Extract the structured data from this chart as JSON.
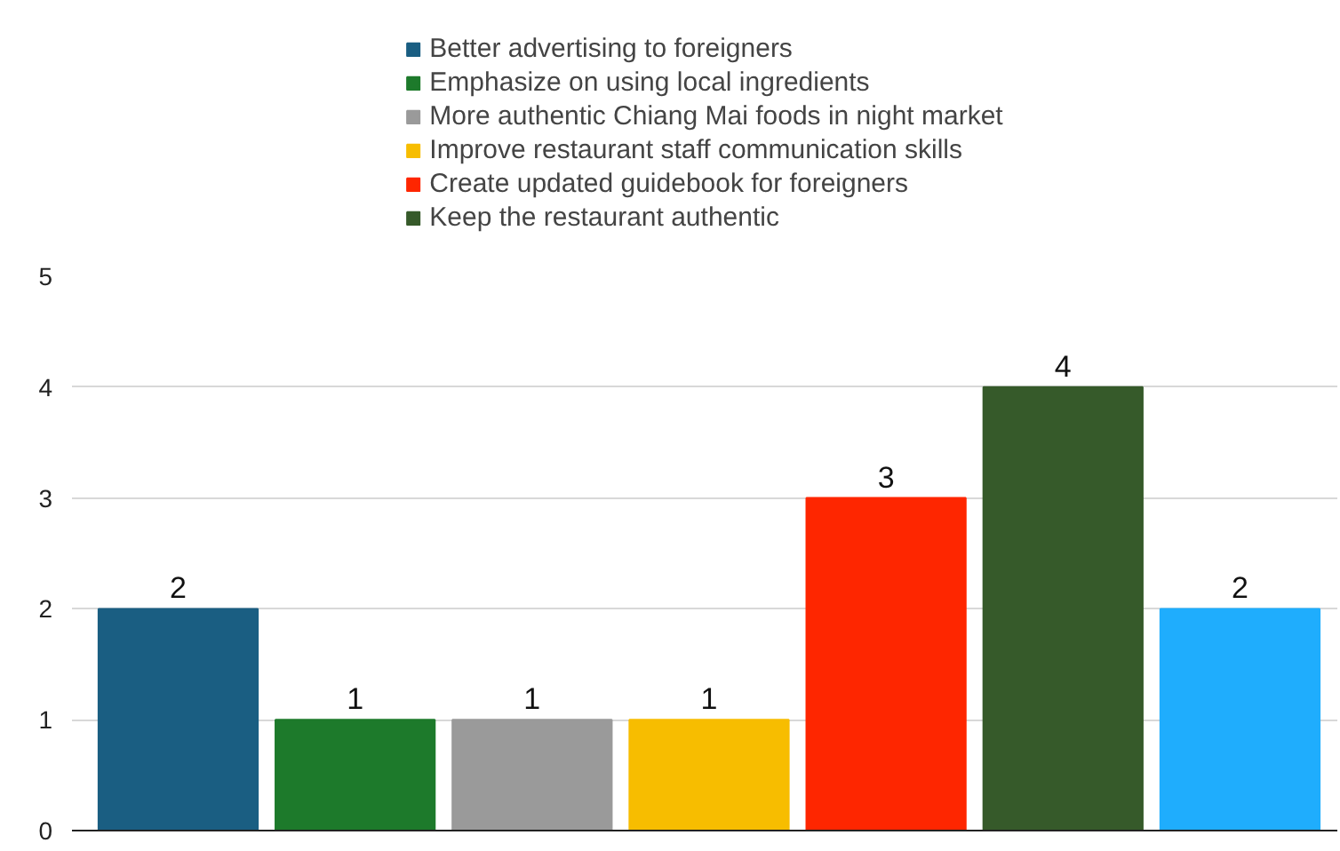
{
  "chart_data": {
    "type": "bar",
    "categories": [
      null,
      null,
      null,
      null,
      null,
      null,
      null
    ],
    "series": [
      {
        "name": "Better advertising to foreigners",
        "color": "#1a5e82",
        "values": [
          2,
          null,
          null,
          null,
          null,
          null,
          null
        ]
      },
      {
        "name": "Emphasize on using local ingredients",
        "color": "#1d7a2b",
        "values": [
          null,
          1,
          null,
          null,
          null,
          null,
          null
        ]
      },
      {
        "name": "More authentic Chiang Mai foods in night market",
        "color": "#9a9a9a",
        "values": [
          null,
          null,
          1,
          null,
          null,
          null,
          null
        ]
      },
      {
        "name": "Improve restaurant staff communication skills",
        "color": "#f7bd00",
        "values": [
          null,
          null,
          null,
          1,
          null,
          null,
          null
        ]
      },
      {
        "name": "Create updated guidebook for foreigners",
        "color": "#fe2600",
        "values": [
          null,
          null,
          null,
          null,
          3,
          null,
          null
        ]
      },
      {
        "name": "Keep the restaurant authentic",
        "color": "#365a2a",
        "values": [
          null,
          null,
          null,
          null,
          null,
          4,
          null
        ]
      },
      {
        "color": "#1fadfd",
        "values": [
          null,
          null,
          null,
          null,
          null,
          null,
          2
        ]
      }
    ],
    "ylim": [
      0,
      5
    ],
    "yticks": [
      0,
      1,
      2,
      3,
      4,
      5
    ],
    "grid": "y",
    "legend": "top",
    "tick_labels": "y",
    "data_labels": true
  }
}
